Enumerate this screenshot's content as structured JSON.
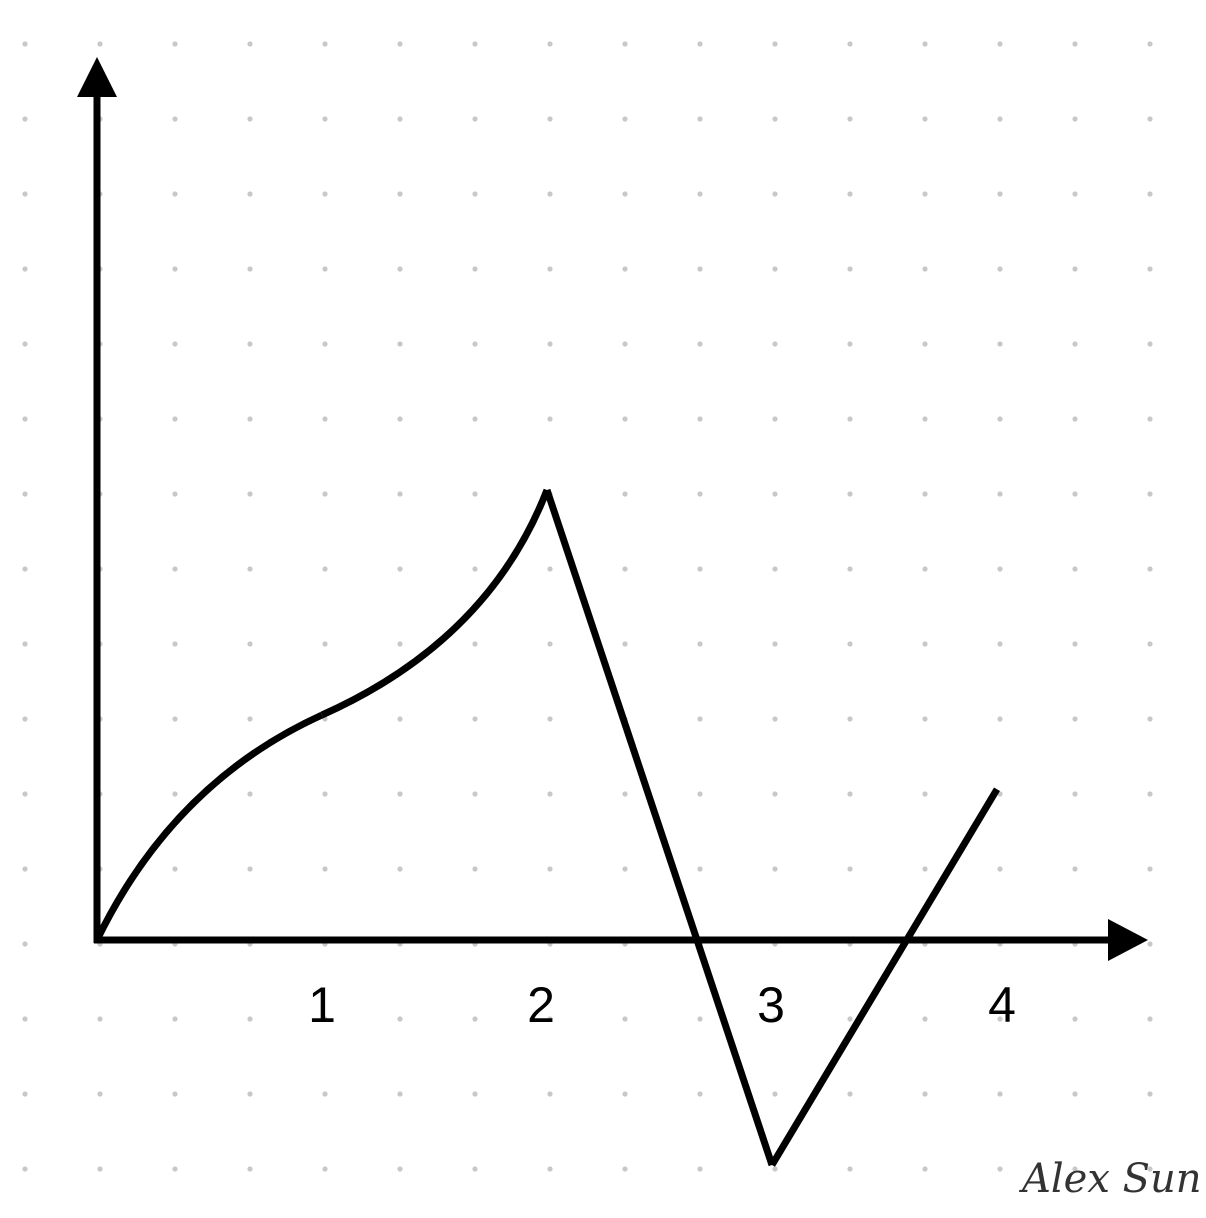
{
  "chart_data": {
    "type": "line",
    "title": "",
    "xlabel": "",
    "ylabel": "",
    "x_ticks": [
      "1",
      "2",
      "3",
      "4"
    ],
    "xlim": [
      0,
      4.5
    ],
    "ylim": [
      -1,
      4
    ],
    "grid": "dots",
    "legend": "none",
    "series": [
      {
        "segments": [
          {
            "kind": "curve",
            "points": [
              [
                0,
                0
              ],
              [
                0.34,
                0.7
              ],
              [
                1,
                1
              ]
            ]
          },
          {
            "kind": "curve",
            "points": [
              [
                1,
                1
              ],
              [
                1.74,
                1.33
              ],
              [
                2,
                2
              ]
            ]
          },
          {
            "kind": "line",
            "points": [
              [
                2,
                2
              ],
              [
                3,
                -1
              ]
            ]
          },
          {
            "kind": "line",
            "points": [
              [
                3,
                -1
              ],
              [
                4,
                0.67
              ]
            ]
          }
        ]
      }
    ],
    "colors": {
      "line": "#000000",
      "axes": "#000000",
      "grid_dot": "#c8c8c8",
      "signature": "#333333"
    }
  },
  "signature": "Alex Sun"
}
